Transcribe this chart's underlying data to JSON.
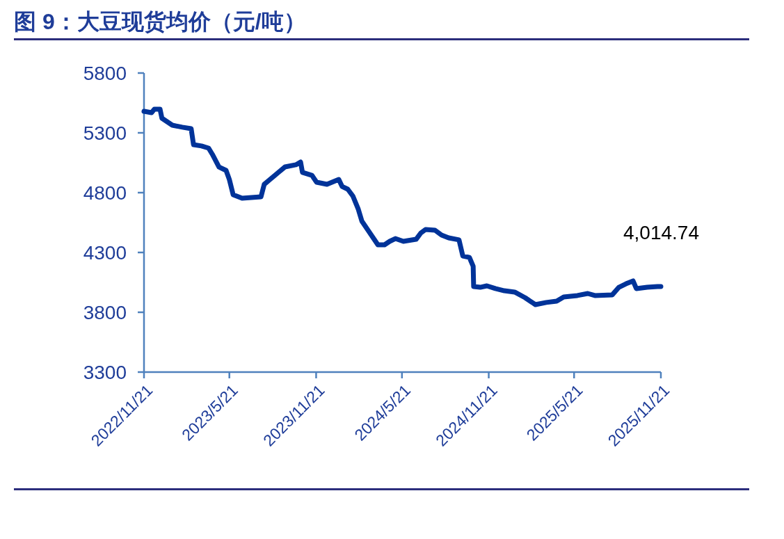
{
  "chart_data": {
    "type": "line",
    "title": "图 9：大豆现货均价（元/吨）",
    "x": [
      "2022-11-21",
      "2022-12-07",
      "2022-12-13",
      "2022-12-25",
      "2022-12-29",
      "2023-01-09",
      "2023-01-20",
      "2023-02-10",
      "2023-03-01",
      "2023-03-06",
      "2023-03-23",
      "2023-04-07",
      "2023-04-15",
      "2023-04-29",
      "2023-05-14",
      "2023-05-21",
      "2023-05-29",
      "2023-06-17",
      "2023-07-27",
      "2023-08-03",
      "2023-08-15",
      "2023-09-02",
      "2023-09-16",
      "2023-10-09",
      "2023-10-19",
      "2023-10-23",
      "2023-11-12",
      "2023-11-22",
      "2023-12-14",
      "2024-01-08",
      "2024-01-15",
      "2024-01-27",
      "2024-02-07",
      "2024-02-18",
      "2024-02-26",
      "2024-03-09",
      "2024-03-19",
      "2024-03-31",
      "2024-04-14",
      "2024-04-25",
      "2024-05-07",
      "2024-05-24",
      "2024-06-20",
      "2024-06-30",
      "2024-07-10",
      "2024-07-30",
      "2024-08-13",
      "2024-08-28",
      "2024-09-19",
      "2024-09-27",
      "2024-10-11",
      "2024-10-19",
      "2024-10-20",
      "2024-11-03",
      "2024-11-17",
      "2024-12-05",
      "2024-12-24",
      "2025-01-15",
      "2025-02-06",
      "2025-02-28",
      "2025-03-23",
      "2025-04-14",
      "2025-04-29",
      "2025-05-28",
      "2025-06-19",
      "2025-07-04",
      "2025-08-10",
      "2025-08-24",
      "2025-09-08",
      "2025-09-23",
      "2025-09-30",
      "2025-10-23",
      "2025-11-14",
      "2025-11-21"
    ],
    "series": [
      {
        "color": "#003399",
        "values": [
          5480,
          5469,
          5498,
          5498,
          5422,
          5393,
          5364,
          5347,
          5335,
          5201,
          5190,
          5172,
          5120,
          5015,
          4986,
          4910,
          4783,
          4754,
          4765,
          4870,
          4910,
          4969,
          5015,
          5033,
          5056,
          4969,
          4945,
          4887,
          4870,
          4910,
          4852,
          4829,
          4771,
          4666,
          4562,
          4492,
          4434,
          4364,
          4364,
          4393,
          4416,
          4393,
          4410,
          4463,
          4492,
          4486,
          4445,
          4422,
          4405,
          4271,
          4259,
          4184,
          4015,
          4009,
          4021,
          3998,
          3980,
          3969,
          3922,
          3864,
          3882,
          3893,
          3928,
          3940,
          3957,
          3940,
          3946,
          4009,
          4038,
          4062,
          3998,
          4009,
          4015,
          4014.74
        ]
      }
    ],
    "xlim": [
      "2022-11-21",
      "2025-11-21"
    ],
    "xticks": [
      {
        "value": "2022-11-21",
        "label": "2022/11/21"
      },
      {
        "value": "2023-05-21",
        "label": "2023/5/21"
      },
      {
        "value": "2023-11-21",
        "label": "2023/11/21"
      },
      {
        "value": "2024-05-21",
        "label": "2024/5/21"
      },
      {
        "value": "2024-11-21",
        "label": "2024/11/21"
      },
      {
        "value": "2025-05-21",
        "label": "2025/5/21"
      },
      {
        "value": "2025-11-21",
        "label": "2025/11/21"
      }
    ],
    "ylim": [
      3300,
      5800
    ],
    "yticks": [
      3300,
      3800,
      4300,
      4800,
      5300,
      5800
    ],
    "annotations": [
      {
        "text": "4,014.74",
        "x": "2025-11-21",
        "y": 4014.74
      }
    ],
    "marker": "none",
    "line_style": "solid"
  }
}
